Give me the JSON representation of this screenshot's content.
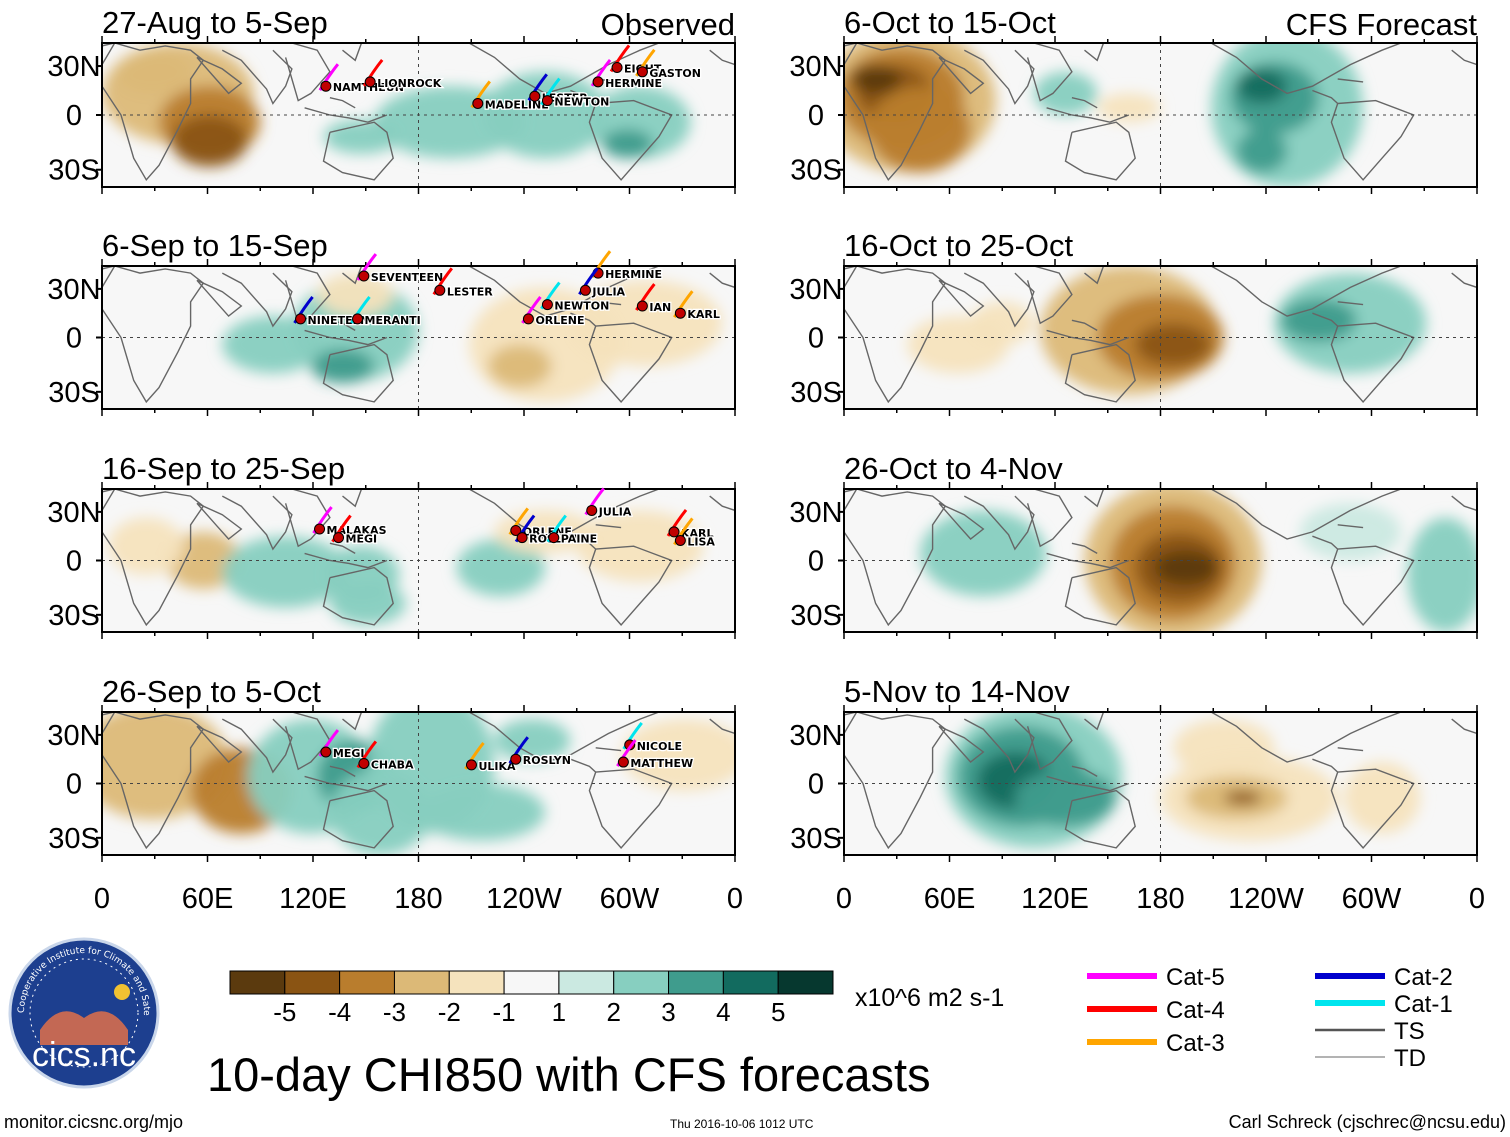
{
  "figure": {
    "title": "10-day CHI850 with CFS forecasts",
    "observed_label": "Observed",
    "forecast_label": "CFS Forecast",
    "website": "monitor.cicsnc.org/mjo",
    "timestamp": "Thu 2016-10-06 1012 UTC",
    "author": "Carl Schreck (cjschrec@ncsu.edu)",
    "logo_text": "cics.nc",
    "logo_ring_text": "Cooperative Institute for Climate and Satellites"
  },
  "axes": {
    "lat_ticks": [
      "30N",
      "0",
      "30S"
    ],
    "lon_ticks": [
      "0",
      "60E",
      "120E",
      "180",
      "120W",
      "60W",
      "0"
    ]
  },
  "colorbar": {
    "units": "x10^6 m2 s-1",
    "labels": [
      "-5",
      "-4",
      "-3",
      "-2",
      "-1",
      "1",
      "2",
      "3",
      "4",
      "5"
    ],
    "colors": [
      "#5b3a0e",
      "#8a5413",
      "#b97d2d",
      "#dcb977",
      "#f5e3bd",
      "#f7f7f7",
      "#cbe9e1",
      "#87cfc0",
      "#3f9c8d",
      "#126b5f",
      "#06382f"
    ]
  },
  "track_legend": [
    {
      "label": "Cat-5",
      "color": "#ff00ff"
    },
    {
      "label": "Cat-4",
      "color": "#ff0000"
    },
    {
      "label": "Cat-3",
      "color": "#ffa500"
    },
    {
      "label": "Cat-2",
      "color": "#0000cd"
    },
    {
      "label": "Cat-1",
      "color": "#00e5ee"
    },
    {
      "label": "TS",
      "color": "#555555"
    },
    {
      "label": "TD",
      "color": "#9a9a9a"
    }
  ],
  "chart_data": [
    {
      "type": "heatmap",
      "title": "27-Aug to 5-Sep",
      "kind": "observed",
      "storms": [
        "NAMTHEUN",
        "LIONROCK",
        "MADELINE",
        "LESTER",
        "NEWTON",
        "HERMINE",
        "EIGHT",
        "GASTON"
      ]
    },
    {
      "type": "heatmap",
      "title": "6-Sep to 15-Sep",
      "kind": "observed",
      "storms": [
        "SEVENTEEN",
        "LESTER",
        "HERMINE",
        "JULIA",
        "NEWTON",
        "ORLENE",
        "IAN",
        "KARL",
        "NINETEEN",
        "MERANTI"
      ]
    },
    {
      "type": "heatmap",
      "title": "16-Sep to 25-Sep",
      "kind": "observed",
      "storms": [
        "MALAKAS",
        "MEGI",
        "ORLENE",
        "ROSLYN",
        "PAINE",
        "JULIA",
        "KARL",
        "LISA"
      ]
    },
    {
      "type": "heatmap",
      "title": "26-Sep to 5-Oct",
      "kind": "observed",
      "storms": [
        "MEGI",
        "CHABA",
        "ULIKA",
        "ROSLYN",
        "NICOLE",
        "MATTHEW"
      ]
    },
    {
      "type": "heatmap",
      "title": "6-Oct to 15-Oct",
      "kind": "forecast",
      "storms": []
    },
    {
      "type": "heatmap",
      "title": "16-Oct to 25-Oct",
      "kind": "forecast",
      "storms": []
    },
    {
      "type": "heatmap",
      "title": "26-Oct to 4-Nov",
      "kind": "forecast",
      "storms": []
    },
    {
      "type": "heatmap",
      "title": "5-Nov to 14-Nov",
      "kind": "forecast",
      "storms": []
    }
  ]
}
